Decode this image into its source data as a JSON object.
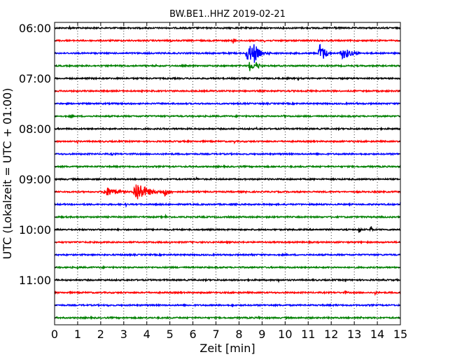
{
  "chart_data": {
    "type": "line",
    "title": "BW.BE1..HHZ 2019-02-21",
    "xlabel": "Zeit  [min]",
    "ylabel": "UTC (Lokalzeit = UTC + 01:00)",
    "xlim": [
      0,
      15
    ],
    "x_ticks": [
      "0",
      "1",
      "2",
      "3",
      "4",
      "5",
      "6",
      "7",
      "8",
      "9",
      "10",
      "11",
      "12",
      "13",
      "14",
      "15"
    ],
    "y_tick_labels": [
      "06:00",
      "07:00",
      "08:00",
      "09:00",
      "10:00",
      "11:00"
    ],
    "traces_per_hour": 4,
    "trace_count": 24,
    "trace_colors": [
      "#000000",
      "#ff0000",
      "#0000ff",
      "#008000"
    ],
    "grid": "vertical dotted lines at each minute",
    "events": [
      {
        "trace": 0,
        "minute": 0.65,
        "amp": 0.22
      },
      {
        "trace": 0,
        "minute": 3.3,
        "amp": 0.15
      },
      {
        "trace": 0,
        "minute": 12.15,
        "amp": 0.22
      },
      {
        "trace": 1,
        "minute": 5.05,
        "amp": 0.18
      },
      {
        "trace": 1,
        "minute": 7.75,
        "amp": 0.35
      },
      {
        "trace": 1,
        "minute": 9.1,
        "amp": 0.15
      },
      {
        "trace": 2,
        "minute": 8.4,
        "amp": 0.9,
        "width": 0.35
      },
      {
        "trace": 2,
        "minute": 8.65,
        "amp": 1.0,
        "width": 0.2
      },
      {
        "trace": 2,
        "minute": 9.3,
        "amp": 0.25
      },
      {
        "trace": 2,
        "minute": 11.5,
        "amp": 1.0,
        "width": 0.2
      },
      {
        "trace": 2,
        "minute": 11.65,
        "amp": 0.6,
        "width": 0.2
      },
      {
        "trace": 2,
        "minute": 12.5,
        "amp": 0.55,
        "width": 0.4
      },
      {
        "trace": 3,
        "minute": 8.45,
        "amp": 0.55,
        "width": 0.2
      },
      {
        "trace": 3,
        "minute": 8.75,
        "amp": 0.35,
        "width": 0.2
      },
      {
        "trace": 3,
        "minute": 4.4,
        "amp": 0.15
      },
      {
        "trace": 4,
        "minute": 10.55,
        "amp": 0.2
      },
      {
        "trace": 5,
        "minute": 10.95,
        "amp": 0.18
      },
      {
        "trace": 6,
        "minute": 3.3,
        "amp": 0.25
      },
      {
        "trace": 6,
        "minute": 13.1,
        "amp": 0.15
      },
      {
        "trace": 7,
        "minute": 0.7,
        "amp": 0.22
      },
      {
        "trace": 7,
        "minute": 9.95,
        "amp": 0.22
      },
      {
        "trace": 8,
        "minute": 8.75,
        "amp": 0.15
      },
      {
        "trace": 8,
        "minute": 10.4,
        "amp": 0.2
      },
      {
        "trace": 9,
        "minute": 1.0,
        "amp": 0.15
      },
      {
        "trace": 9,
        "minute": 2.8,
        "amp": 0.15
      },
      {
        "trace": 9,
        "minute": 7.8,
        "amp": 0.15
      },
      {
        "trace": 9,
        "minute": 12.85,
        "amp": 0.18
      },
      {
        "trace": 10,
        "minute": 2.5,
        "amp": 0.15
      },
      {
        "trace": 10,
        "minute": 11.3,
        "amp": 0.12
      },
      {
        "trace": 11,
        "minute": 13.6,
        "amp": 0.15
      },
      {
        "trace": 12,
        "minute": 6.15,
        "amp": 0.2
      },
      {
        "trace": 12,
        "minute": 9.3,
        "amp": 0.15
      },
      {
        "trace": 12,
        "minute": 10.2,
        "amp": 0.15
      },
      {
        "trace": 13,
        "minute": 2.25,
        "amp": 0.45,
        "width": 0.5
      },
      {
        "trace": 13,
        "minute": 3.55,
        "amp": 1.0,
        "width": 0.45
      },
      {
        "trace": 13,
        "minute": 4.75,
        "amp": 0.45,
        "width": 0.25
      },
      {
        "trace": 13,
        "minute": 8.3,
        "amp": 0.15
      },
      {
        "trace": 14,
        "minute": 3.1,
        "amp": 0.2
      },
      {
        "trace": 14,
        "minute": 10.0,
        "amp": 0.15
      },
      {
        "trace": 14,
        "minute": 15.0,
        "amp": 0.2
      },
      {
        "trace": 15,
        "minute": 4.8,
        "amp": 0.25
      },
      {
        "trace": 15,
        "minute": 12.0,
        "amp": 0.12
      },
      {
        "trace": 16,
        "minute": 13.2,
        "amp": 0.5
      },
      {
        "trace": 16,
        "minute": 13.7,
        "amp": 0.55
      },
      {
        "trace": 16,
        "minute": 15.0,
        "amp": 0.2
      },
      {
        "trace": 17,
        "minute": 2.0,
        "amp": 0.15
      },
      {
        "trace": 17,
        "minute": 5.0,
        "amp": 0.15
      },
      {
        "trace": 18,
        "minute": 8.55,
        "amp": 0.2
      },
      {
        "trace": 18,
        "minute": 10.0,
        "amp": 0.15
      },
      {
        "trace": 19,
        "minute": 1.0,
        "amp": 0.15
      },
      {
        "trace": 19,
        "minute": 11.7,
        "amp": 0.12
      },
      {
        "trace": 20,
        "minute": 9.7,
        "amp": 0.25
      },
      {
        "trace": 20,
        "minute": 11.2,
        "amp": 0.15
      },
      {
        "trace": 20,
        "minute": 12.6,
        "amp": 0.2
      },
      {
        "trace": 20,
        "minute": 13.0,
        "amp": 0.15
      },
      {
        "trace": 21,
        "minute": 12.6,
        "amp": 0.25
      },
      {
        "trace": 21,
        "minute": 13.9,
        "amp": 0.2
      },
      {
        "trace": 22,
        "minute": 2.3,
        "amp": 0.2
      },
      {
        "trace": 22,
        "minute": 7.7,
        "amp": 0.2
      },
      {
        "trace": 22,
        "minute": 12.2,
        "amp": 0.2
      },
      {
        "trace": 23,
        "minute": 8.85,
        "amp": 0.2
      },
      {
        "trace": 23,
        "minute": 13.3,
        "amp": 0.15
      }
    ]
  }
}
